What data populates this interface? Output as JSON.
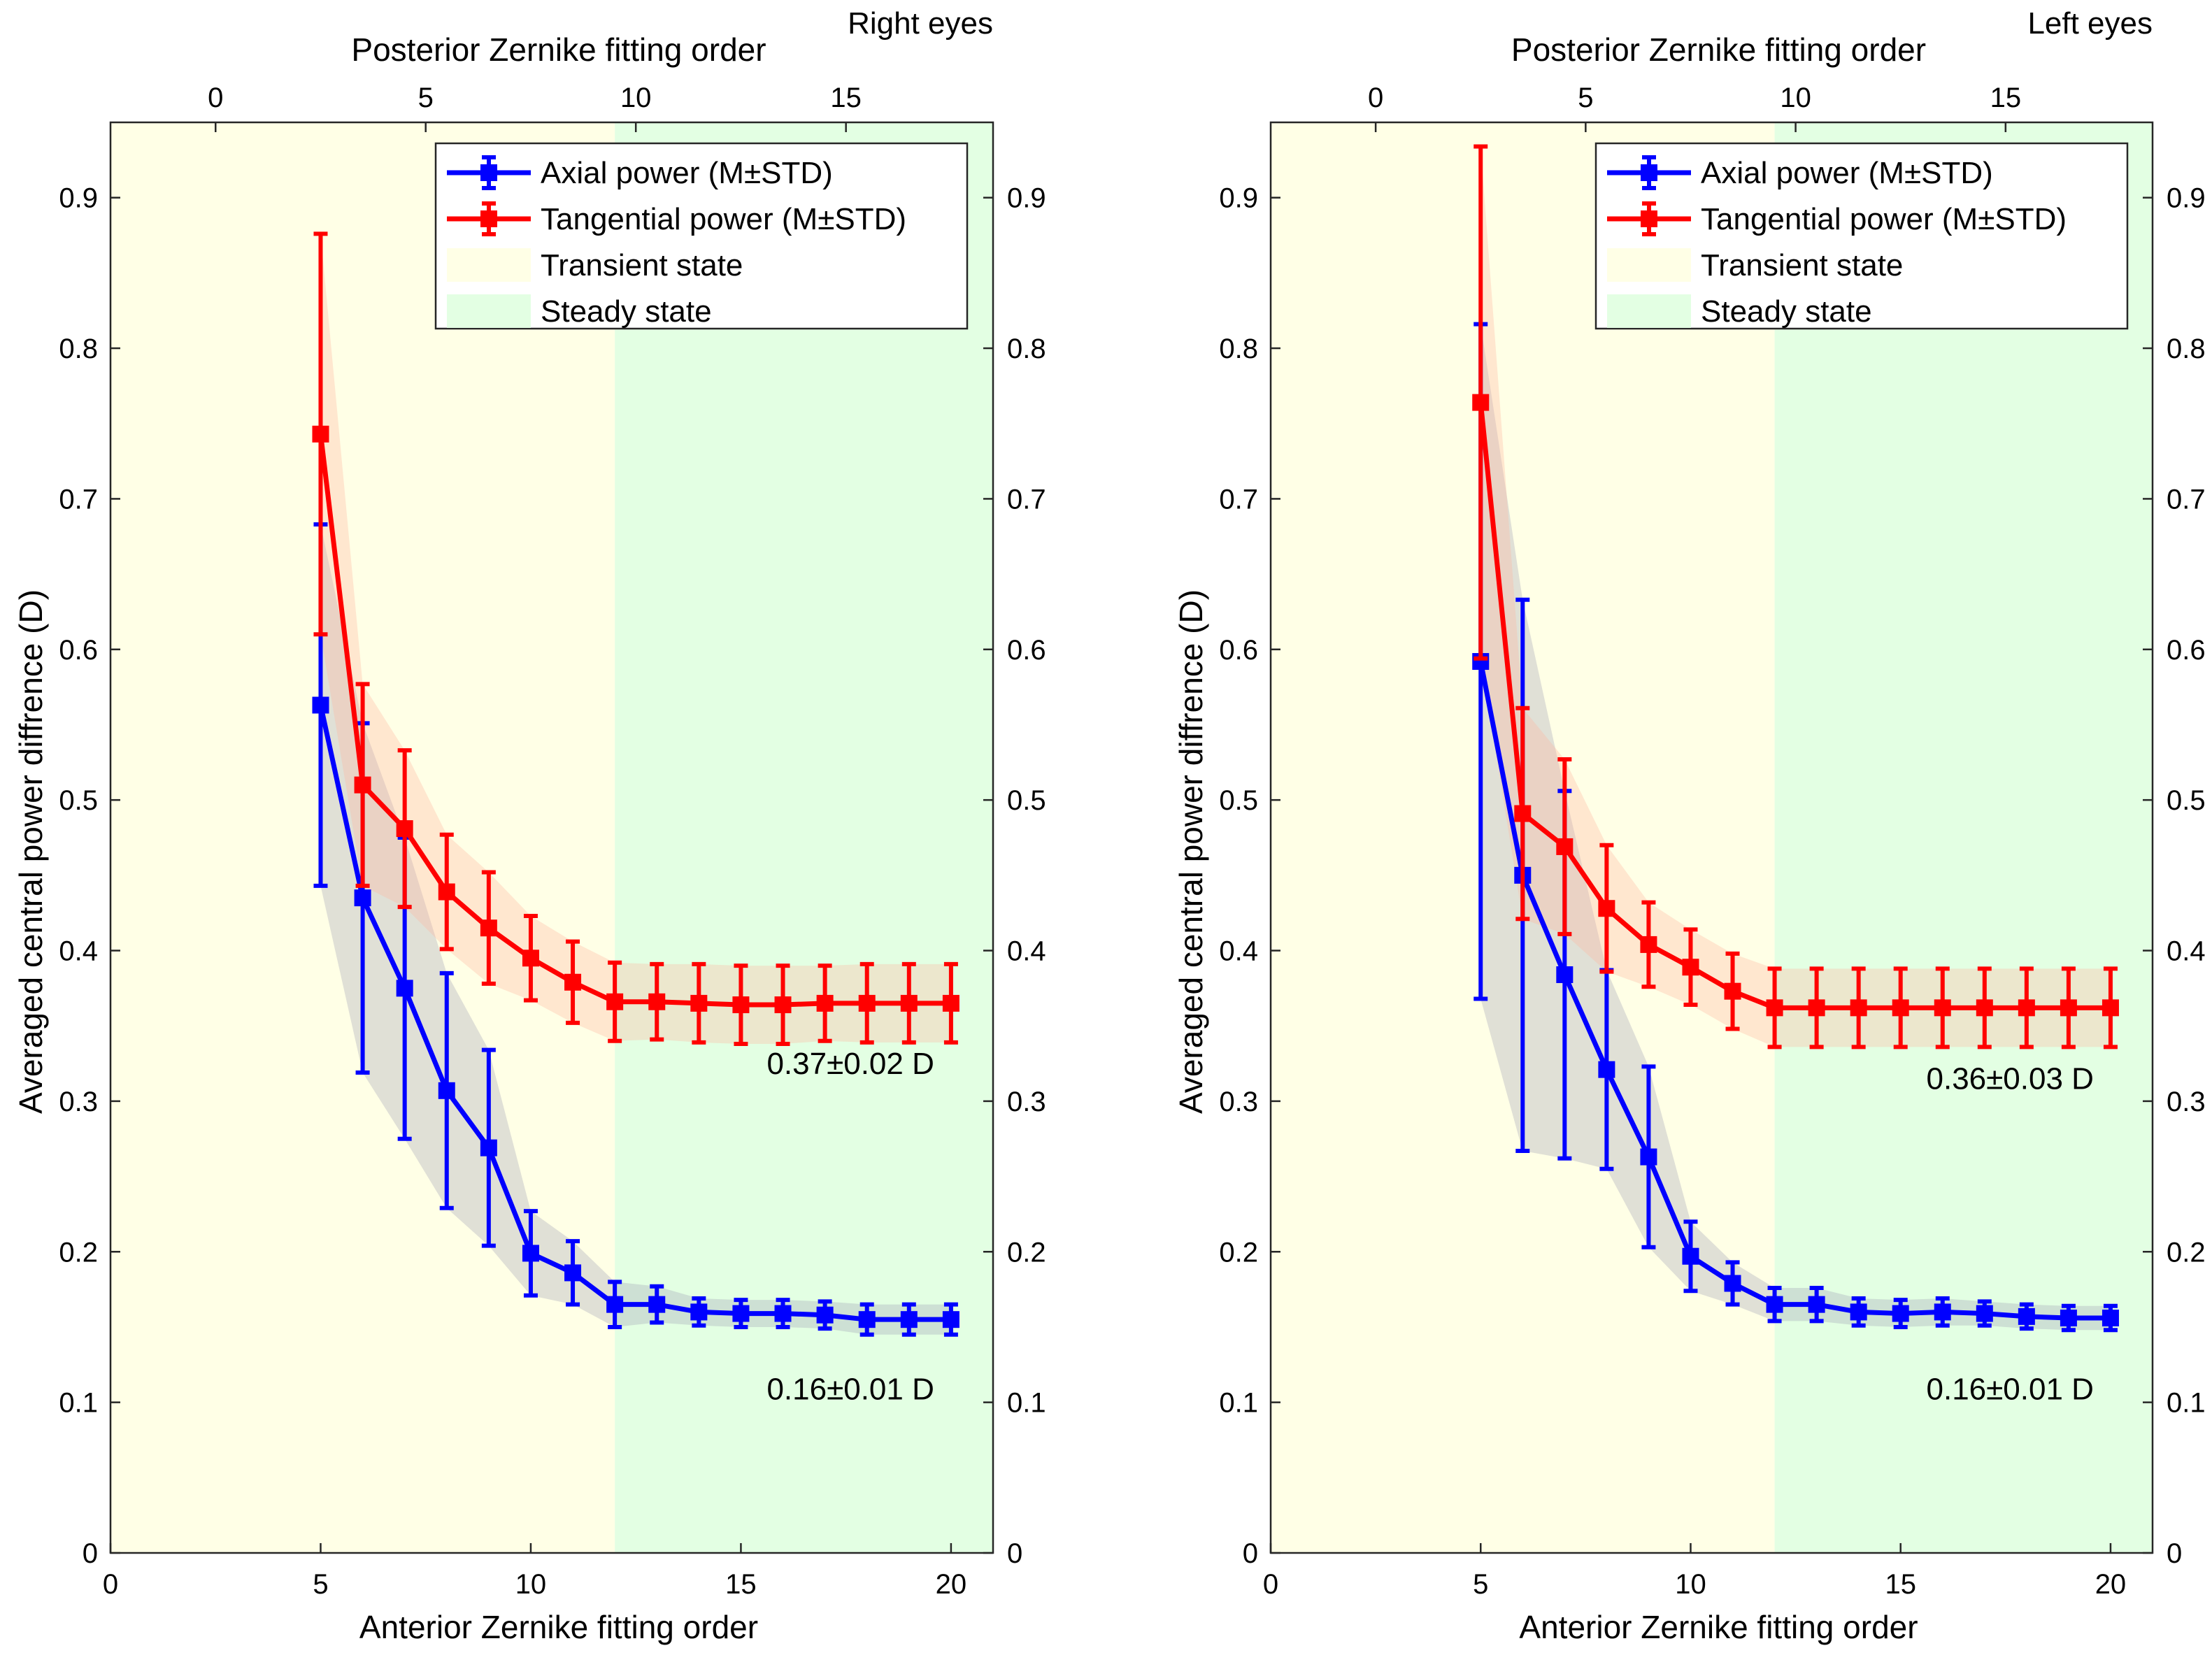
{
  "chart_data": [
    {
      "type": "line",
      "panel_label": "Right eyes",
      "xlabel": "Anterior Zernike fitting order",
      "x2label": "Posterior Zernike fitting order",
      "ylabel": "Averaged central power diffrence (D)",
      "xlim": [
        0,
        21
      ],
      "ylim": [
        0,
        0.95
      ],
      "xticks": [
        "0",
        "5",
        "10",
        "15",
        "20"
      ],
      "x2ticks": [
        "0",
        "5",
        "10",
        "15"
      ],
      "yticks": [
        "0",
        "0.1",
        "0.2",
        "0.3",
        "0.4",
        "0.5",
        "0.6",
        "0.7",
        "0.8",
        "0.9"
      ],
      "regions": [
        {
          "name": "Transient state",
          "x_from": 0,
          "x_to": 12,
          "color": "#ffffe6"
        },
        {
          "name": "Steady state",
          "x_from": 12,
          "x_to": 21,
          "color": "#e3ffe3"
        }
      ],
      "series": [
        {
          "name": "Axial power (M±STD)",
          "color": "#0000ff",
          "band_color": "#a0a0b4",
          "x": [
            5,
            6,
            7,
            8,
            9,
            10,
            11,
            12,
            13,
            14,
            15,
            16,
            17,
            18,
            19,
            20
          ],
          "mean": [
            0.563,
            0.435,
            0.375,
            0.307,
            0.269,
            0.199,
            0.186,
            0.165,
            0.165,
            0.16,
            0.159,
            0.159,
            0.158,
            0.155,
            0.155,
            0.155
          ],
          "std": [
            0.12,
            0.116,
            0.1,
            0.078,
            0.065,
            0.028,
            0.021,
            0.015,
            0.012,
            0.009,
            0.009,
            0.009,
            0.009,
            0.01,
            0.01,
            0.01
          ]
        },
        {
          "name": "Tangential power (M±STD)",
          "color": "#ff0000",
          "band_color": "#ffb4a0",
          "x": [
            5,
            6,
            7,
            8,
            9,
            10,
            11,
            12,
            13,
            14,
            15,
            16,
            17,
            18,
            19,
            20
          ],
          "mean": [
            0.743,
            0.51,
            0.481,
            0.439,
            0.415,
            0.395,
            0.379,
            0.366,
            0.366,
            0.365,
            0.364,
            0.364,
            0.365,
            0.365,
            0.365,
            0.365
          ],
          "std": [
            0.133,
            0.067,
            0.052,
            0.038,
            0.037,
            0.028,
            0.027,
            0.026,
            0.025,
            0.026,
            0.026,
            0.026,
            0.025,
            0.026,
            0.026,
            0.026
          ]
        }
      ],
      "annotations": [
        {
          "text": "0.37±0.02 D",
          "color": "#ff0000",
          "x": 19.6,
          "y": 0.318
        },
        {
          "text": "0.16±0.01 D",
          "color": "#0000ff",
          "x": 19.6,
          "y": 0.102
        }
      ]
    },
    {
      "type": "line",
      "panel_label": "Left eyes",
      "xlabel": "Anterior Zernike fitting order",
      "x2label": "Posterior Zernike fitting order",
      "ylabel": "Averaged central power diffrence (D)",
      "xlim": [
        0,
        21
      ],
      "ylim": [
        0,
        0.95
      ],
      "xticks": [
        "0",
        "5",
        "10",
        "15",
        "20"
      ],
      "x2ticks": [
        "0",
        "5",
        "10",
        "15"
      ],
      "yticks": [
        "0",
        "0.1",
        "0.2",
        "0.3",
        "0.4",
        "0.5",
        "0.6",
        "0.7",
        "0.8",
        "0.9"
      ],
      "regions": [
        {
          "name": "Transient state",
          "x_from": 0,
          "x_to": 12,
          "color": "#ffffe6"
        },
        {
          "name": "Steady state",
          "x_from": 12,
          "x_to": 21,
          "color": "#e3ffe3"
        }
      ],
      "series": [
        {
          "name": "Axial power (M±STD)",
          "color": "#0000ff",
          "band_color": "#a0a0b4",
          "x": [
            5,
            6,
            7,
            8,
            9,
            10,
            11,
            12,
            13,
            14,
            15,
            16,
            17,
            18,
            19,
            20
          ],
          "mean": [
            0.592,
            0.45,
            0.384,
            0.321,
            0.263,
            0.197,
            0.179,
            0.165,
            0.165,
            0.16,
            0.159,
            0.16,
            0.159,
            0.157,
            0.156,
            0.156
          ],
          "std": [
            0.224,
            0.183,
            0.122,
            0.066,
            0.06,
            0.023,
            0.014,
            0.011,
            0.011,
            0.009,
            0.009,
            0.009,
            0.008,
            0.008,
            0.008,
            0.008
          ]
        },
        {
          "name": "Tangential power (M±STD)",
          "color": "#ff0000",
          "band_color": "#ffb4a0",
          "x": [
            5,
            6,
            7,
            8,
            9,
            10,
            11,
            12,
            13,
            14,
            15,
            16,
            17,
            18,
            19,
            20
          ],
          "mean": [
            0.764,
            0.491,
            0.469,
            0.428,
            0.404,
            0.389,
            0.373,
            0.362,
            0.362,
            0.362,
            0.362,
            0.362,
            0.362,
            0.362,
            0.362,
            0.362
          ],
          "std": [
            0.17,
            0.07,
            0.058,
            0.042,
            0.028,
            0.025,
            0.025,
            0.026,
            0.026,
            0.026,
            0.026,
            0.026,
            0.026,
            0.026,
            0.026,
            0.026
          ]
        }
      ],
      "annotations": [
        {
          "text": "0.36±0.03 D",
          "color": "#ff0000",
          "x": 19.6,
          "y": 0.308
        },
        {
          "text": "0.16±0.01 D",
          "color": "#0000ff",
          "x": 19.6,
          "y": 0.102
        }
      ]
    }
  ]
}
